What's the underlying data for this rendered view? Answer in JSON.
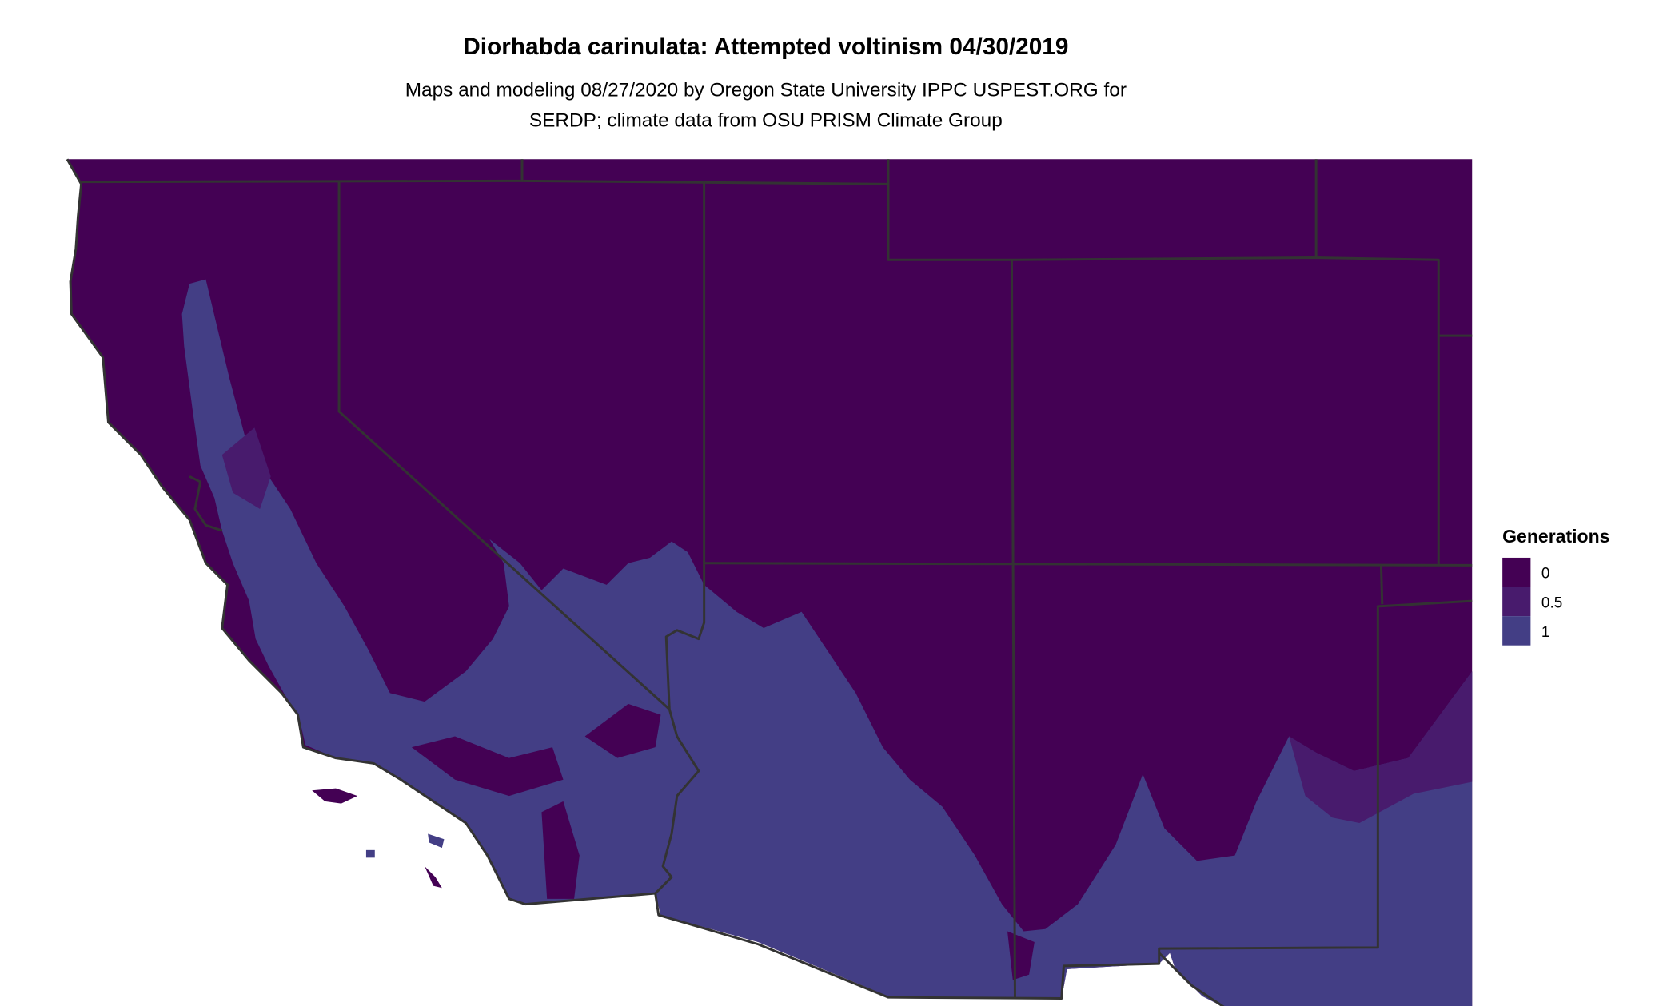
{
  "title": "Diorhabda carinulata: Attempted voltinism 04/30/2019",
  "subtitle_lines": [
    "Maps and modeling 08/27/2020 by Oregon State University IPPC USPEST.ORG for",
    "SERDP; climate data from OSU PRISM Climate Group"
  ],
  "legend": {
    "title": "Generations",
    "items": [
      {
        "label": "0",
        "color": "#440154"
      },
      {
        "label": "0.5",
        "color": "#481b6d"
      },
      {
        "label": "1",
        "color": "#433e85"
      }
    ]
  },
  "map": {
    "region": "Southwestern United States",
    "border_color": "#333333",
    "background": "#ffffff"
  }
}
